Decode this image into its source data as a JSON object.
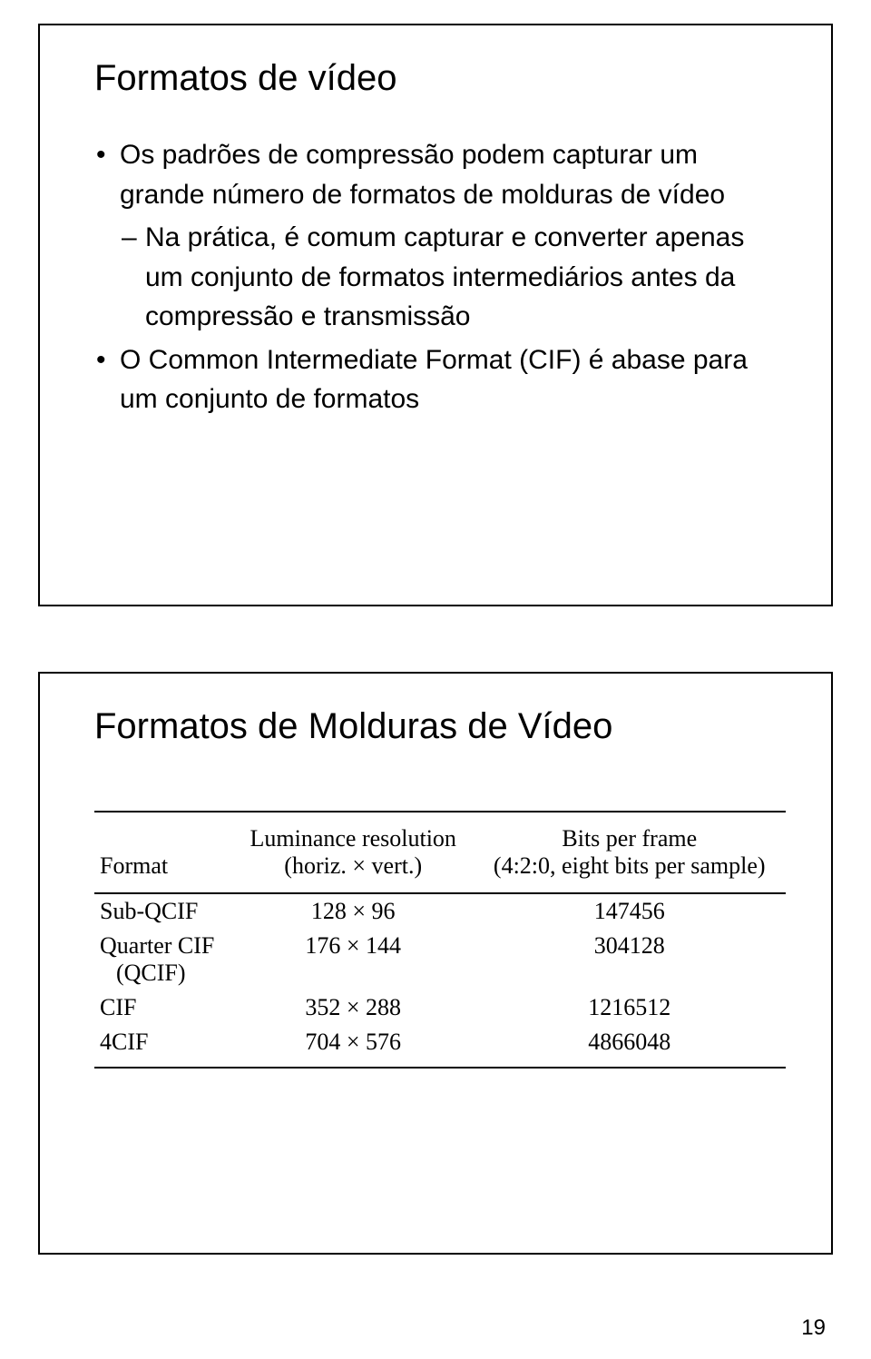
{
  "slide1": {
    "title": "Formatos de vídeo",
    "bullets": [
      {
        "text": "Os padrões de compressão podem capturar um grande número de formatos de molduras de vídeo",
        "sub": [
          "Na prática, é comum capturar e converter apenas um conjunto de formatos intermediários antes da compressão e transmissão"
        ]
      },
      {
        "text": "O Common Intermediate Format (CIF) é abase para um conjunto de formatos",
        "sub": []
      }
    ]
  },
  "slide2": {
    "title": "Formatos de Molduras de Vídeo",
    "table": {
      "headers": {
        "col1": "Format",
        "col2_line1": "Luminance resolution",
        "col2_line2": "(horiz. × vert.)",
        "col3_line1": "Bits per frame",
        "col3_line2": "(4:2:0, eight bits per sample)"
      },
      "rows": [
        {
          "format": "Sub-QCIF",
          "format_sub": "",
          "resolution": "128 × 96",
          "bits": "147456"
        },
        {
          "format": "Quarter CIF",
          "format_sub": "(QCIF)",
          "resolution": "176 × 144",
          "bits": "304128"
        },
        {
          "format": "CIF",
          "format_sub": "",
          "resolution": "352 × 288",
          "bits": "1216512"
        },
        {
          "format": "4CIF",
          "format_sub": "",
          "resolution": "704 × 576",
          "bits": "4866048"
        }
      ]
    }
  },
  "page_number": "19"
}
